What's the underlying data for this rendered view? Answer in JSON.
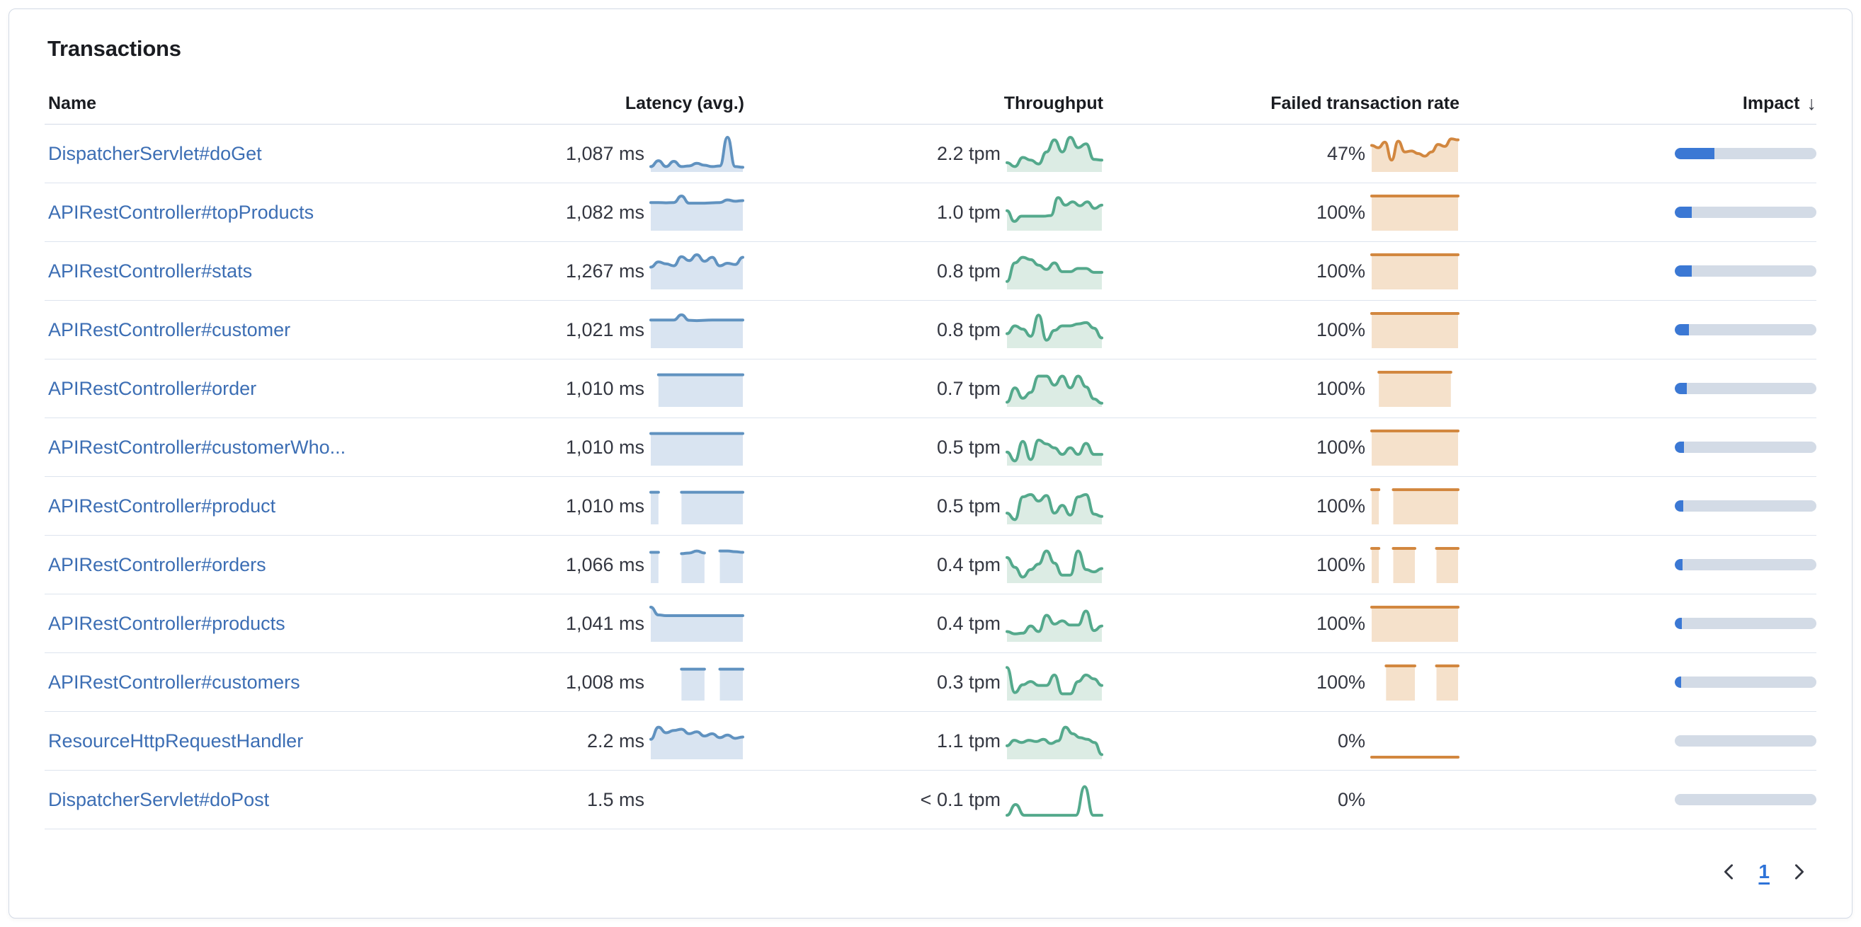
{
  "title": "Transactions",
  "columns": {
    "name": "Name",
    "latency": "Latency (avg.)",
    "throughput": "Throughput",
    "failed": "Failed transaction rate",
    "impact": "Impact",
    "impact_sort_arrow": "↓"
  },
  "pagination": {
    "page": "1"
  },
  "colors": {
    "link": "#3c6eb4",
    "text": "#343741",
    "heading": "#1a1c21",
    "card_border": "#d3dae6",
    "row_border": "#dde4ee",
    "latency_line": "#6092c0",
    "latency_fill": "#d9e4f1",
    "throughput_line": "#54a98c",
    "throughput_fill": "#dcece4",
    "failed_line": "#d2873f",
    "failed_fill": "#f5e1cb",
    "impact_fill": "#3b78d4",
    "impact_track": "#d3dbe6"
  },
  "rows": [
    {
      "name": "DispatcherServlet#doGet",
      "latency": "1,087 ms",
      "latency_spark": [
        0.1,
        0.28,
        0.1,
        0.26,
        0.1,
        0.12,
        0.2,
        0.14,
        0.1,
        0.12,
        1.0,
        0.1,
        0.08
      ],
      "throughput": "2.2 tpm",
      "throughput_spark": [
        0.22,
        0.1,
        0.38,
        0.3,
        0.18,
        0.55,
        0.92,
        0.55,
        1.0,
        0.68,
        0.8,
        0.32,
        0.3
      ],
      "failed": "47%",
      "failed_spark": [
        0.75,
        0.68,
        0.85,
        0.3,
        0.88,
        0.55,
        0.58,
        0.5,
        0.42,
        0.55,
        0.78,
        0.72,
        0.95,
        0.92
      ],
      "impact": 0.28
    },
    {
      "name": "APIRestController#topProducts",
      "latency": "1,082 ms",
      "latency_spark": [
        0.8,
        0.8,
        0.79,
        0.8,
        1.0,
        0.78,
        0.78,
        0.78,
        0.79,
        0.8,
        0.88,
        0.84,
        0.86
      ],
      "throughput": "1.0 tpm",
      "throughput_spark": [
        0.55,
        0.22,
        0.38,
        0.38,
        0.38,
        0.38,
        0.4,
        0.95,
        0.72,
        0.82,
        0.7,
        0.82,
        0.62,
        0.72
      ],
      "failed": "100%",
      "failed_spark": [
        1,
        1,
        1,
        1,
        1,
        1,
        1,
        1,
        1,
        1,
        1,
        1,
        1
      ],
      "impact": 0.12
    },
    {
      "name": "APIRestController#stats",
      "latency": "1,267 ms",
      "latency_spark": [
        0.62,
        0.78,
        0.72,
        0.66,
        0.94,
        0.82,
        1.0,
        0.8,
        0.92,
        0.66,
        0.74,
        0.7,
        0.92
      ],
      "throughput": "0.8 tpm",
      "throughput_spark": [
        0.18,
        0.75,
        0.92,
        0.85,
        0.68,
        0.55,
        0.75,
        0.48,
        0.48,
        0.58,
        0.58,
        0.46,
        0.46
      ],
      "failed": "100%",
      "failed_spark": [
        1,
        1,
        1,
        1,
        1,
        1,
        1,
        1,
        1,
        1,
        1,
        1,
        1
      ],
      "impact": 0.12
    },
    {
      "name": "APIRestController#customer",
      "latency": "1,021 ms",
      "latency_spark": [
        0.8,
        0.8,
        0.8,
        0.8,
        0.96,
        0.79,
        0.78,
        0.79,
        0.8,
        0.8,
        0.8,
        0.8,
        0.8
      ],
      "throughput": "0.8 tpm",
      "throughput_spark": [
        0.38,
        0.62,
        0.52,
        0.3,
        0.95,
        0.18,
        0.48,
        0.62,
        0.62,
        0.68,
        0.72,
        0.55,
        0.25
      ],
      "failed": "100%",
      "failed_spark": [
        1,
        1,
        1,
        1,
        1,
        1,
        1,
        1,
        1,
        1,
        1,
        1,
        1
      ],
      "impact": 0.1
    },
    {
      "name": "APIRestController#order",
      "latency": "1,010 ms",
      "latency_spark": [
        null,
        0.92,
        0.92,
        0.92,
        0.92,
        0.92,
        0.92,
        0.92,
        0.92,
        0.92,
        0.92,
        0.92,
        0.92
      ],
      "throughput": "0.7 tpm",
      "throughput_spark": [
        0.08,
        0.52,
        0.2,
        0.38,
        0.88,
        0.88,
        0.6,
        0.88,
        0.52,
        0.88,
        0.55,
        0.18,
        0.05
      ],
      "failed": "100%",
      "failed_spark": [
        null,
        1,
        1,
        1,
        1,
        1,
        1,
        1,
        1,
        1,
        1,
        1,
        null
      ],
      "impact": 0.085
    },
    {
      "name": "APIRestController#customerWho...",
      "latency": "1,010 ms",
      "latency_spark": [
        0.92,
        0.92,
        0.92,
        0.92,
        0.92,
        0.92,
        0.92,
        0.92,
        0.92,
        0.92,
        0.92,
        0.92,
        0.92
      ],
      "throughput": "0.5 tpm",
      "throughput_spark": [
        0.35,
        0.08,
        0.68,
        0.12,
        0.72,
        0.6,
        0.48,
        0.28,
        0.48,
        0.28,
        0.62,
        0.28,
        0.28
      ],
      "failed": "100%",
      "failed_spark": [
        1,
        1,
        1,
        1,
        1,
        1,
        1,
        1,
        1,
        1,
        1,
        1,
        1
      ],
      "impact": 0.065
    },
    {
      "name": "APIRestController#product",
      "latency": "1,010 ms",
      "latency_spark": [
        0.92,
        0.92,
        null,
        null,
        0.92,
        0.92,
        0.92,
        0.92,
        0.92,
        0.92,
        0.92,
        0.92,
        0.92
      ],
      "throughput": "0.5 tpm",
      "throughput_spark": [
        0.28,
        0.08,
        0.78,
        0.85,
        0.65,
        0.82,
        0.28,
        0.52,
        0.22,
        0.78,
        0.85,
        0.25,
        0.18
      ],
      "failed": "100%",
      "failed_spark": [
        1,
        1,
        null,
        1,
        1,
        1,
        1,
        1,
        1,
        1,
        1,
        1,
        1
      ],
      "impact": 0.06
    },
    {
      "name": "APIRestController#orders",
      "latency": "1,066 ms",
      "latency_spark": [
        0.88,
        0.88,
        null,
        null,
        0.84,
        0.86,
        0.92,
        0.86,
        null,
        0.92,
        0.92,
        0.9,
        0.88
      ],
      "throughput": "0.4 tpm",
      "throughput_spark": [
        0.72,
        0.42,
        0.12,
        0.35,
        0.52,
        0.92,
        0.55,
        0.18,
        0.18,
        0.92,
        0.35,
        0.28,
        0.38
      ],
      "failed": "100%",
      "failed_spark": [
        1,
        1,
        null,
        1,
        1,
        1,
        1,
        null,
        null,
        1,
        1,
        1,
        1
      ],
      "impact": 0.055
    },
    {
      "name": "APIRestController#products",
      "latency": "1,041 ms",
      "latency_spark": [
        1.0,
        0.76,
        0.74,
        0.74,
        0.74,
        0.74,
        0.74,
        0.74,
        0.74,
        0.74,
        0.74,
        0.74,
        0.74
      ],
      "throughput": "0.4 tpm",
      "throughput_spark": [
        0.25,
        0.18,
        0.2,
        0.42,
        0.25,
        0.75,
        0.48,
        0.58,
        0.45,
        0.45,
        0.88,
        0.28,
        0.42
      ],
      "failed": "100%",
      "failed_spark": [
        1,
        1,
        1,
        1,
        1,
        1,
        1,
        1,
        1,
        1,
        1,
        1,
        1
      ],
      "impact": 0.05
    },
    {
      "name": "APIRestController#customers",
      "latency": "1,008 ms",
      "latency_spark": [
        null,
        null,
        null,
        null,
        0.9,
        0.9,
        0.9,
        0.9,
        null,
        0.9,
        0.9,
        0.9,
        0.9
      ],
      "throughput": "0.3 tpm",
      "throughput_spark": [
        0.95,
        0.18,
        0.42,
        0.52,
        0.4,
        0.4,
        0.72,
        0.14,
        0.14,
        0.52,
        0.72,
        0.6,
        0.4
      ],
      "failed": "100%",
      "failed_spark": [
        null,
        null,
        1,
        1,
        1,
        1,
        1,
        null,
        null,
        1,
        1,
        1,
        1
      ],
      "impact": 0.045
    },
    {
      "name": "ResourceHttpRequestHandler",
      "latency": "2.2 ms",
      "latency_spark": [
        0.55,
        0.92,
        0.75,
        0.82,
        0.86,
        0.72,
        0.78,
        0.65,
        0.72,
        0.6,
        0.68,
        0.58,
        0.62
      ],
      "throughput": "1.1 tpm",
      "throughput_spark": [
        0.35,
        0.52,
        0.45,
        0.52,
        0.48,
        0.55,
        0.42,
        0.5,
        0.92,
        0.72,
        0.6,
        0.55,
        0.45,
        0.08
      ],
      "failed": "0%",
      "failed_spark": [
        0,
        0,
        0,
        0,
        0,
        0,
        0,
        0,
        0,
        0,
        0,
        0,
        0
      ],
      "failed_fill": false,
      "impact": 0
    },
    {
      "name": "DispatcherServlet#doPost",
      "latency": "1.5 ms",
      "latency_spark": null,
      "throughput": "< 0.1 tpm",
      "throughput_spark": [
        0.02,
        0.35,
        0.02,
        0.02,
        0.02,
        0.02,
        0.02,
        0.02,
        0.02,
        0.9,
        0.02,
        0.02
      ],
      "throughput_fill": false,
      "failed": "0%",
      "failed_spark": null,
      "impact": 0
    }
  ]
}
